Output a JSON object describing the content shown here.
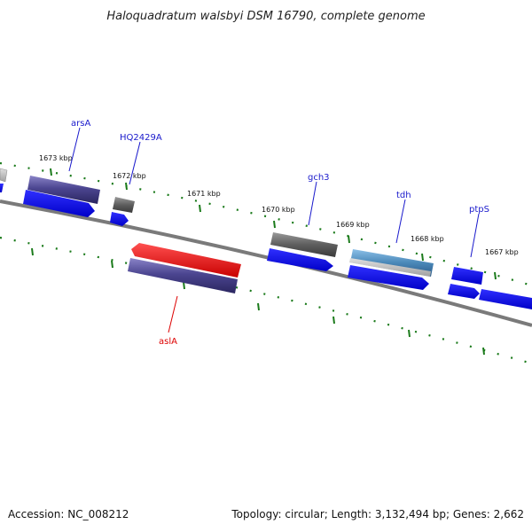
{
  "title": "Haloquadratum walsbyi DSM 16790, complete genome",
  "footer": {
    "accession": "Accession: NC_008212",
    "topology": "Topology: circular; Length: 3,132,494 bp; Genes: 2,662"
  },
  "scale_labels": [
    "1673 kbp",
    "1672 kbp",
    "1671 kbp",
    "1670 kbp",
    "1669 kbp",
    "1668 kbp",
    "1667 kbp"
  ],
  "gene_labels": [
    {
      "name": "arsA",
      "strand": "forward",
      "color": "#1a1acc"
    },
    {
      "name": "HQ2429A",
      "strand": "forward",
      "color": "#1a1acc"
    },
    {
      "name": "gch3",
      "strand": "forward",
      "color": "#1a1acc"
    },
    {
      "name": "tdh",
      "strand": "forward",
      "color": "#1a1acc"
    },
    {
      "name": "ptpS",
      "strand": "forward",
      "color": "#1a1acc"
    },
    {
      "name": "aslA",
      "strand": "reverse",
      "color": "#dd0000"
    }
  ],
  "colors": {
    "cds": "#0a0aee",
    "gene_feature": "#4b4590",
    "grey_feature": "#5e5e5e",
    "rna_feature": "#4a88b8",
    "highlight_red": "#ee0000",
    "backbone": "#808080",
    "tick": "#1a7a1a"
  }
}
